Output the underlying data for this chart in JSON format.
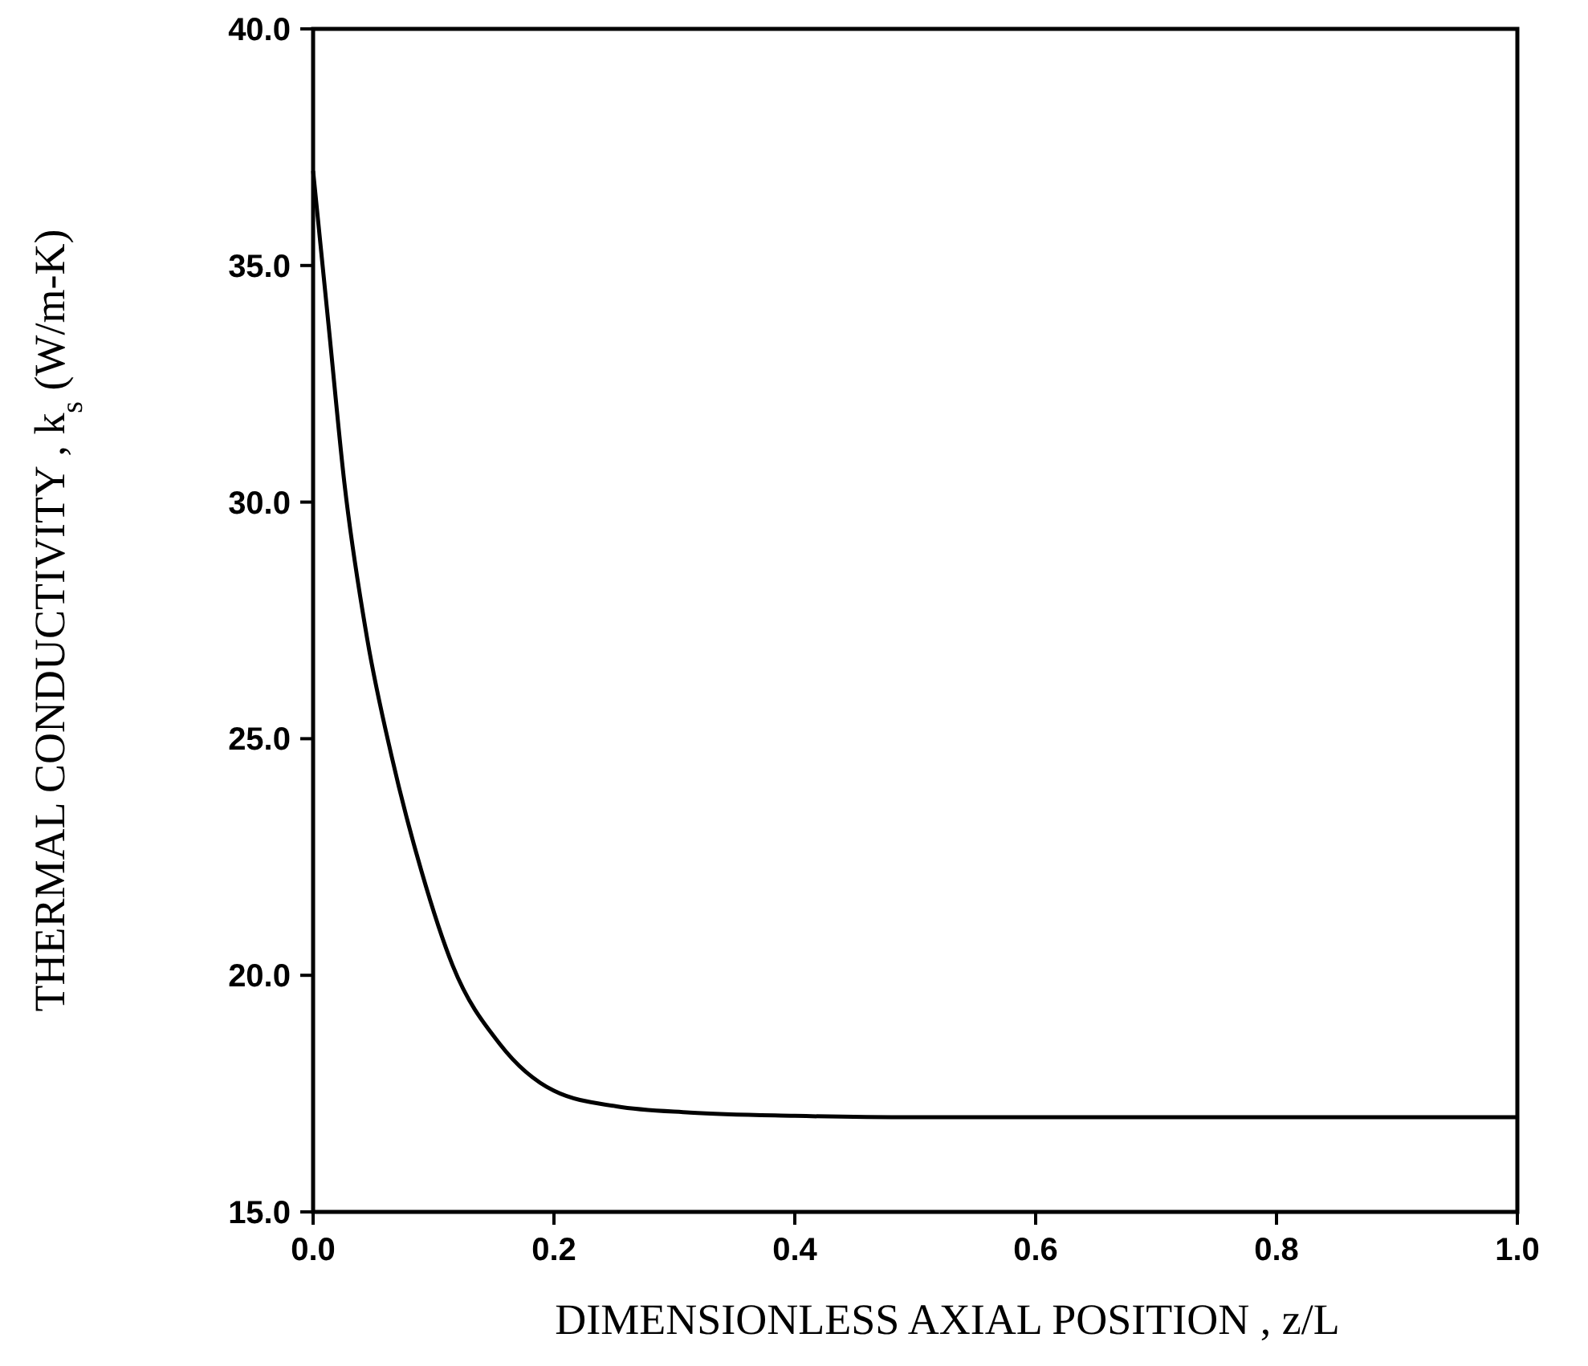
{
  "chart_data": {
    "type": "line",
    "xlabel": "DIMENSIONLESS AXIAL POSITION ,  z/L",
    "ylabel": "THERMAL CONDUCTIVITY ,  k$_{s}$ (W/m-K)",
    "x": [
      0,
      0.013,
      0.026,
      0.045,
      0.065,
      0.09,
      0.116,
      0.155,
      0.2,
      0.252,
      0.313,
      0.4,
      0.5,
      0.7,
      1.0
    ],
    "series": [
      {
        "color": "#000000",
        "values": [
          37.0,
          33.7,
          30.4,
          27.1,
          24.65,
          22.2,
          20.2,
          18.55,
          17.56,
          17.23,
          17.1,
          17.03,
          17.0,
          17.0,
          17.0
        ]
      }
    ],
    "xlim": [
      0,
      1
    ],
    "ylim": [
      15,
      40
    ],
    "xticks": [
      {
        "value": 0,
        "label": "0.0"
      },
      {
        "value": 0.2,
        "label": "0.2"
      },
      {
        "value": 0.4,
        "label": "0.4"
      },
      {
        "value": 0.6,
        "label": "0.6"
      },
      {
        "value": 0.8,
        "label": "0.8"
      },
      {
        "value": 1,
        "label": "1.0"
      }
    ],
    "yticks": [
      {
        "value": 15,
        "label": "15.0"
      },
      {
        "value": 20,
        "label": "20.0"
      },
      {
        "value": 25,
        "label": "25.0"
      },
      {
        "value": 30,
        "label": "30.0"
      },
      {
        "value": 35,
        "label": "35.0"
      },
      {
        "value": 40,
        "label": "40.0"
      }
    ],
    "grid": false,
    "marker": "none",
    "line_style": "solid"
  }
}
